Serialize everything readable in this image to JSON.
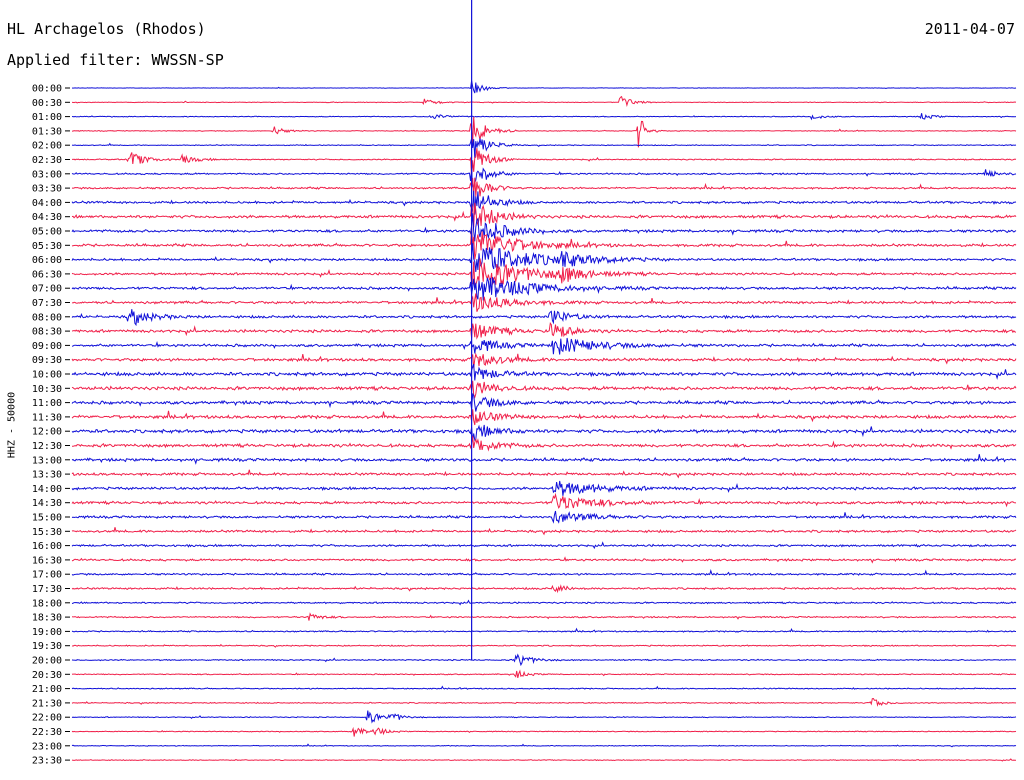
{
  "header": {
    "station": "HL Archagelos (Rhodos)",
    "date": "2011-04-07",
    "filter": "Applied filter: WWSSN-SP"
  },
  "channel_label": "HHZ - 50000",
  "colors": {
    "blue": "#1010d8",
    "red": "#f0204a",
    "marker": "#1010d8"
  },
  "chart_data": {
    "type": "line",
    "title": "HL Archagelos (Rhodos)",
    "subtitle": "Applied filter: WWSSN-SP",
    "ylabel": "HHZ - 50000",
    "xlabel": "",
    "row_labels": [
      "00:00",
      "00:30",
      "01:00",
      "01:30",
      "02:00",
      "02:30",
      "03:00",
      "03:30",
      "04:00",
      "04:30",
      "05:00",
      "05:30",
      "06:00",
      "06:30",
      "07:00",
      "07:30",
      "08:00",
      "08:30",
      "09:00",
      "09:30",
      "10:00",
      "10:30",
      "11:00",
      "11:30",
      "12:00",
      "12:30",
      "13:00",
      "13:30",
      "14:00",
      "14:30",
      "15:00",
      "15:30",
      "16:00",
      "16:30",
      "17:00",
      "17:30",
      "18:00",
      "18:30",
      "19:00",
      "19:30",
      "20:00",
      "20:30",
      "21:00",
      "21:30",
      "22:00",
      "22:30",
      "23:00",
      "23:30"
    ],
    "row_noise": [
      0.15,
      0.25,
      0.3,
      0.3,
      0.35,
      0.45,
      0.6,
      0.7,
      0.9,
      1.1,
      1.0,
      1.0,
      0.9,
      0.9,
      1.0,
      1.0,
      1.0,
      1.1,
      1.0,
      1.1,
      1.3,
      1.3,
      1.2,
      1.2,
      1.3,
      1.2,
      1.1,
      1.0,
      1.0,
      1.0,
      0.9,
      0.9,
      0.8,
      0.8,
      0.7,
      0.7,
      0.6,
      0.55,
      0.5,
      0.45,
      0.45,
      0.4,
      0.4,
      0.4,
      0.35,
      0.3,
      0.3,
      0.3
    ],
    "events": [
      {
        "row": 0,
        "minute": 12.7,
        "amp": 1.4,
        "dur": 0.3
      },
      {
        "row": 1,
        "minute": 11.2,
        "amp": 0.6,
        "dur": 0.4
      },
      {
        "row": 1,
        "minute": 17.4,
        "amp": 1.5,
        "dur": 0.3
      },
      {
        "row": 2,
        "minute": 11.4,
        "amp": 0.6,
        "dur": 0.4
      },
      {
        "row": 2,
        "minute": 23.5,
        "amp": 0.6,
        "dur": 0.3
      },
      {
        "row": 2,
        "minute": 27.0,
        "amp": 0.6,
        "dur": 0.3
      },
      {
        "row": 3,
        "minute": 6.4,
        "amp": 0.8,
        "dur": 0.3
      },
      {
        "row": 3,
        "minute": 12.7,
        "amp": 3.0,
        "dur": 0.4
      },
      {
        "row": 3,
        "minute": 18.0,
        "amp": 3.0,
        "dur": 0.2
      },
      {
        "row": 4,
        "minute": 12.7,
        "amp": 3.0,
        "dur": 0.4
      },
      {
        "row": 5,
        "minute": 1.8,
        "amp": 0.7,
        "dur": 0.4
      },
      {
        "row": 5,
        "minute": 1.9,
        "amp": 0.7,
        "dur": 0.4
      },
      {
        "row": 5,
        "minute": 3.5,
        "amp": 0.7,
        "dur": 0.4
      },
      {
        "row": 5,
        "minute": 12.7,
        "amp": 3.0,
        "dur": 0.4
      },
      {
        "row": 6,
        "minute": 12.7,
        "amp": 3.0,
        "dur": 0.4
      },
      {
        "row": 6,
        "minute": 29.0,
        "amp": 0.8,
        "dur": 0.3
      },
      {
        "row": 7,
        "minute": 12.7,
        "amp": 3.0,
        "dur": 0.4
      },
      {
        "row": 8,
        "minute": 12.7,
        "amp": 3.0,
        "dur": 0.5
      },
      {
        "row": 9,
        "minute": 12.7,
        "amp": 3.0,
        "dur": 0.6
      },
      {
        "row": 10,
        "minute": 12.7,
        "amp": 3.0,
        "dur": 0.8
      },
      {
        "row": 11,
        "minute": 12.7,
        "amp": 3.0,
        "dur": 1.2
      },
      {
        "row": 12,
        "minute": 12.7,
        "amp": 3.0,
        "dur": 1.6
      },
      {
        "row": 12,
        "minute": 15.5,
        "amp": 1.0,
        "dur": 0.8
      },
      {
        "row": 13,
        "minute": 12.7,
        "amp": 3.0,
        "dur": 1.5
      },
      {
        "row": 13,
        "minute": 15.5,
        "amp": 1.2,
        "dur": 0.6
      },
      {
        "row": 14,
        "minute": 12.7,
        "amp": 2.5,
        "dur": 1.5
      },
      {
        "row": 15,
        "minute": 12.7,
        "amp": 1.6,
        "dur": 1.0
      },
      {
        "row": 16,
        "minute": 1.8,
        "amp": 1.4,
        "dur": 0.6
      },
      {
        "row": 16,
        "minute": 15.2,
        "amp": 1.4,
        "dur": 0.5
      },
      {
        "row": 17,
        "minute": 12.7,
        "amp": 1.5,
        "dur": 0.7
      },
      {
        "row": 17,
        "minute": 15.2,
        "amp": 1.6,
        "dur": 0.5
      },
      {
        "row": 18,
        "minute": 12.7,
        "amp": 1.5,
        "dur": 0.7
      },
      {
        "row": 18,
        "minute": 15.3,
        "amp": 1.6,
        "dur": 1.2
      },
      {
        "row": 19,
        "minute": 12.7,
        "amp": 1.5,
        "dur": 0.7
      },
      {
        "row": 20,
        "minute": 12.7,
        "amp": 1.5,
        "dur": 0.6
      },
      {
        "row": 21,
        "minute": 12.7,
        "amp": 1.5,
        "dur": 0.6
      },
      {
        "row": 22,
        "minute": 12.7,
        "amp": 1.5,
        "dur": 0.6
      },
      {
        "row": 23,
        "minute": 12.7,
        "amp": 1.5,
        "dur": 0.6
      },
      {
        "row": 24,
        "minute": 12.7,
        "amp": 1.5,
        "dur": 0.6
      },
      {
        "row": 25,
        "minute": 12.7,
        "amp": 1.5,
        "dur": 0.6
      },
      {
        "row": 28,
        "minute": 15.3,
        "amp": 1.4,
        "dur": 1.2
      },
      {
        "row": 29,
        "minute": 15.3,
        "amp": 1.4,
        "dur": 1.2
      },
      {
        "row": 30,
        "minute": 15.3,
        "amp": 1.0,
        "dur": 1.0
      },
      {
        "row": 35,
        "minute": 15.3,
        "amp": 0.8,
        "dur": 0.3
      },
      {
        "row": 37,
        "minute": 7.5,
        "amp": 0.8,
        "dur": 0.3
      },
      {
        "row": 40,
        "minute": 14.1,
        "amp": 1.3,
        "dur": 0.4
      },
      {
        "row": 41,
        "minute": 14.1,
        "amp": 0.7,
        "dur": 0.3
      },
      {
        "row": 43,
        "minute": 25.4,
        "amp": 0.9,
        "dur": 0.3
      },
      {
        "row": 44,
        "minute": 9.4,
        "amp": 1.2,
        "dur": 0.3
      },
      {
        "row": 44,
        "minute": 10.1,
        "amp": 0.9,
        "dur": 0.3
      },
      {
        "row": 45,
        "minute": 8.9,
        "amp": 1.0,
        "dur": 0.3
      },
      {
        "row": 45,
        "minute": 9.6,
        "amp": 0.8,
        "dur": 0.3
      }
    ],
    "marker_minute": 12.7
  }
}
